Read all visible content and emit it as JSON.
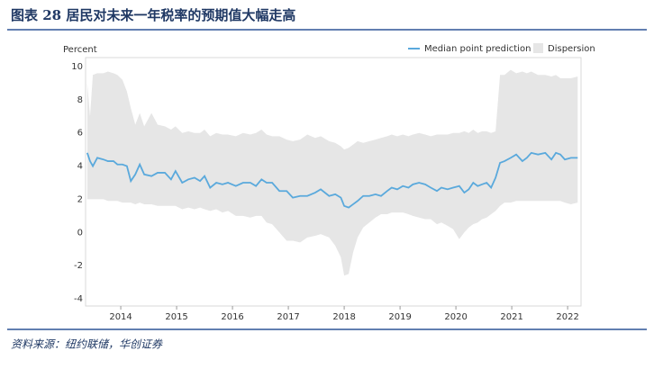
{
  "chart_data": {
    "type": "line",
    "title": "图表 28 居民对未来一年税率的预期值大幅走高",
    "y_label": "Percent",
    "source": "资料来源：纽约联储，华创证券",
    "x": [
      2013.4,
      2013.45,
      2013.5,
      2013.58,
      2013.69,
      2013.77,
      2013.87,
      2013.94,
      2014.03,
      2014.11,
      2014.18,
      2014.26,
      2014.34,
      2014.42,
      2014.55,
      2014.66,
      2014.79,
      2014.9,
      2014.98,
      2015.1,
      2015.21,
      2015.32,
      2015.42,
      2015.5,
      2015.6,
      2015.71,
      2015.82,
      2015.92,
      2016.06,
      2016.19,
      2016.32,
      2016.42,
      2016.52,
      2016.61,
      2016.71,
      2016.84,
      2016.97,
      2017.08,
      2017.21,
      2017.34,
      2017.48,
      2017.58,
      2017.73,
      2017.84,
      2017.94,
      2018.0,
      2018.08,
      2018.16,
      2018.24,
      2018.34,
      2018.45,
      2018.56,
      2018.66,
      2018.77,
      2018.85,
      2018.95,
      2019.05,
      2019.15,
      2019.23,
      2019.34,
      2019.45,
      2019.55,
      2019.66,
      2019.74,
      2019.85,
      2019.95,
      2020.06,
      2020.15,
      2020.23,
      2020.31,
      2020.39,
      2020.47,
      2020.55,
      2020.63,
      2020.71,
      2020.79,
      2020.87,
      2020.98,
      2021.08,
      2021.19,
      2021.27,
      2021.35,
      2021.47,
      2021.6,
      2021.71,
      2021.79,
      2021.87,
      2021.95,
      2022.06,
      2022.18
    ],
    "series": [
      {
        "name": "Median point prediction",
        "color": "#5aa9dc",
        "values": [
          4.8,
          4.3,
          4.0,
          4.5,
          4.4,
          4.3,
          4.3,
          4.1,
          4.1,
          4.0,
          3.1,
          3.5,
          4.1,
          3.5,
          3.4,
          3.6,
          3.6,
          3.2,
          3.7,
          3.0,
          3.2,
          3.3,
          3.1,
          3.4,
          2.7,
          3.0,
          2.9,
          3.0,
          2.8,
          3.0,
          3.0,
          2.8,
          3.2,
          3.0,
          3.0,
          2.5,
          2.5,
          2.1,
          2.2,
          2.2,
          2.4,
          2.6,
          2.2,
          2.3,
          2.1,
          1.6,
          1.5,
          1.7,
          1.9,
          2.2,
          2.2,
          2.3,
          2.2,
          2.5,
          2.7,
          2.6,
          2.8,
          2.7,
          2.9,
          3.0,
          2.9,
          2.7,
          2.5,
          2.7,
          2.6,
          2.7,
          2.8,
          2.4,
          2.6,
          3.0,
          2.8,
          2.9,
          3.0,
          2.7,
          3.3,
          4.2,
          4.3,
          4.5,
          4.7,
          4.3,
          4.5,
          4.8,
          4.7,
          4.8,
          4.4,
          4.8,
          4.7,
          4.4,
          4.5,
          4.5
        ]
      },
      {
        "name": "Dispersion",
        "color": "#e6e6e6",
        "upper": [
          9.0,
          7.0,
          9.5,
          9.6,
          9.6,
          9.7,
          9.6,
          9.5,
          9.2,
          8.5,
          7.5,
          6.5,
          7.2,
          6.4,
          7.2,
          6.5,
          6.4,
          6.2,
          6.4,
          6.0,
          6.1,
          6.0,
          6.0,
          6.2,
          5.8,
          6.0,
          5.9,
          5.9,
          5.8,
          6.0,
          5.9,
          6.0,
          6.2,
          5.9,
          5.8,
          5.8,
          5.6,
          5.5,
          5.6,
          5.9,
          5.7,
          5.8,
          5.5,
          5.4,
          5.2,
          5.0,
          5.1,
          5.3,
          5.5,
          5.4,
          5.5,
          5.6,
          5.7,
          5.8,
          5.9,
          5.8,
          5.9,
          5.8,
          5.9,
          6.0,
          5.9,
          5.8,
          5.9,
          5.9,
          5.9,
          6.0,
          6.0,
          6.1,
          6.0,
          6.2,
          6.0,
          6.1,
          6.1,
          6.0,
          6.1,
          9.5,
          9.5,
          9.8,
          9.6,
          9.7,
          9.6,
          9.7,
          9.5,
          9.5,
          9.4,
          9.5,
          9.3,
          9.3,
          9.3,
          9.4
        ],
        "lower": [
          2.0,
          2.0,
          2.0,
          2.0,
          2.0,
          1.9,
          1.9,
          1.9,
          1.8,
          1.8,
          1.8,
          1.7,
          1.8,
          1.7,
          1.7,
          1.6,
          1.6,
          1.6,
          1.6,
          1.4,
          1.5,
          1.4,
          1.5,
          1.4,
          1.3,
          1.4,
          1.2,
          1.3,
          1.0,
          1.0,
          0.9,
          1.0,
          1.0,
          0.6,
          0.5,
          0.0,
          -0.5,
          -0.5,
          -0.6,
          -0.3,
          -0.2,
          -0.1,
          -0.3,
          -0.8,
          -1.5,
          -2.6,
          -2.5,
          -1.2,
          -0.3,
          0.3,
          0.6,
          0.9,
          1.1,
          1.1,
          1.2,
          1.2,
          1.2,
          1.1,
          1.0,
          0.9,
          0.8,
          0.8,
          0.5,
          0.6,
          0.4,
          0.2,
          -0.4,
          0.0,
          0.3,
          0.5,
          0.6,
          0.8,
          0.9,
          1.1,
          1.3,
          1.6,
          1.8,
          1.8,
          1.9,
          1.9,
          1.9,
          1.9,
          1.9,
          1.9,
          1.9,
          1.9,
          1.9,
          1.8,
          1.7,
          1.8
        ]
      }
    ],
    "xlim": [
      2013.37,
      2022.24
    ],
    "xticks": [
      2014,
      2015,
      2016,
      2017,
      2018,
      2019,
      2020,
      2021,
      2022
    ],
    "ylim": [
      -4,
      10
    ],
    "yticks": [
      10,
      8,
      6,
      4,
      2,
      0,
      -2,
      -4
    ],
    "grid": false
  }
}
